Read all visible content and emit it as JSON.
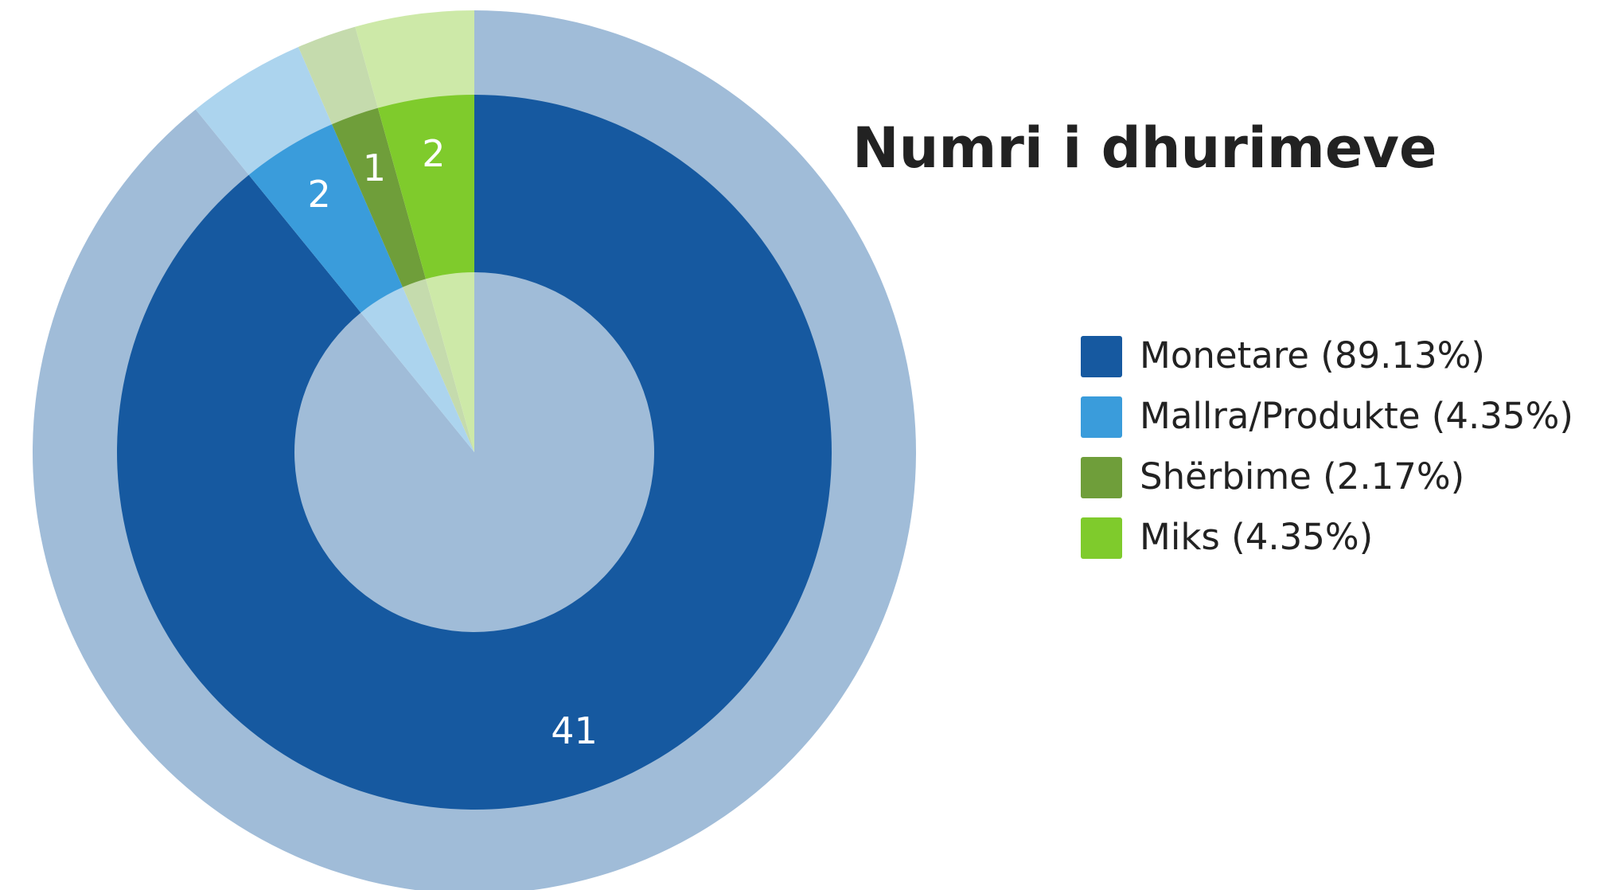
{
  "chart_data": {
    "type": "donut",
    "title": "Numri i dhurimeve",
    "categories": [
      "Monetare (89.13%)",
      "Mallra/Produkte (4.35%)",
      "Shërbime (2.17%)",
      "Miks (4.35%)"
    ],
    "values": [
      41,
      2,
      1,
      2
    ],
    "colors": [
      "#1659a0",
      "#3a9cdb",
      "#6f9e3a",
      "#7fcb2c"
    ],
    "light_colors": [
      "#a0bcd8",
      "#acd4ee",
      "#c5dbad",
      "#cde9a8"
    ],
    "legend": "right"
  }
}
